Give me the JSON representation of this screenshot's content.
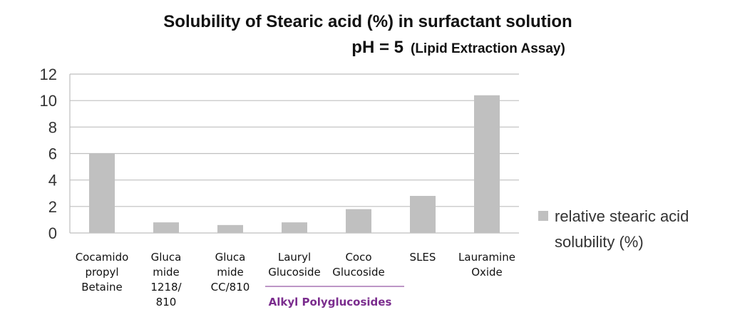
{
  "chart_data": {
    "type": "bar",
    "title": "Solubility of Stearic acid (%) in surfactant solution",
    "subtitle_main": "pH = 5",
    "subtitle_note": "(Lipid Extraction Assay)",
    "categories": [
      [
        "Cocamido",
        "propyl",
        "Betaine"
      ],
      [
        "Gluca",
        "mide",
        "1218/",
        "810"
      ],
      [
        "Gluca",
        "mide",
        "CC/810"
      ],
      [
        "Lauryl",
        "Glucoside"
      ],
      [
        "Coco",
        "Glucoside"
      ],
      [
        "SLES"
      ],
      [
        "Lauramine",
        "Oxide"
      ]
    ],
    "series": [
      {
        "name": "relative stearic acid solubility (%)",
        "values": [
          6.0,
          0.8,
          0.6,
          0.8,
          1.8,
          2.8,
          10.4
        ]
      }
    ],
    "legend_lines": [
      "relative stearic acid",
      "solubility (%)"
    ],
    "ylim": [
      0,
      12
    ],
    "yticks": [
      "0",
      "2",
      "4",
      "6",
      "8",
      "10",
      "12"
    ],
    "grid": true,
    "legend_position": "right",
    "group_label": "Alkyl Polyglucosides",
    "colors": {
      "bar": "#c0c0c0",
      "grid": "#bfbfbf",
      "group": "#7b2d8e"
    }
  }
}
